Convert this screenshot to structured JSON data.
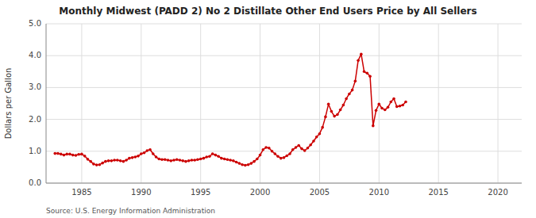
{
  "chart_data": {
    "type": "line",
    "title": "Monthly Midwest (PADD 2) No 2 Distillate Other End Users Price by All Sellers",
    "ylabel": "Dollars per Gallon",
    "annotations": [
      "Source: U.S. Energy Information Administration"
    ],
    "color": "#cc0000",
    "marker": "circle",
    "grid": true,
    "xlim": [
      1982,
      2022
    ],
    "ylim": [
      0.0,
      5.0
    ],
    "xticks": [
      1985,
      1990,
      1995,
      2000,
      2005,
      2010,
      2015,
      2020
    ],
    "yticks": [
      {
        "value": 0.0,
        "label": "0.0"
      },
      {
        "value": 1.0,
        "label": "1.0"
      },
      {
        "value": 2.0,
        "label": "2.0"
      },
      {
        "value": 3.0,
        "label": "3.0"
      },
      {
        "value": 4.0,
        "label": "4.0"
      },
      {
        "value": 5.0,
        "label": "5.0"
      }
    ],
    "x": [
      1982.75,
      1983.0,
      1983.25,
      1983.5,
      1983.75,
      1984.0,
      1984.25,
      1984.5,
      1984.75,
      1985.0,
      1985.25,
      1985.5,
      1985.75,
      1986.0,
      1986.25,
      1986.5,
      1986.75,
      1987.0,
      1987.25,
      1987.5,
      1987.75,
      1988.0,
      1988.25,
      1988.5,
      1988.75,
      1989.0,
      1989.25,
      1989.5,
      1989.75,
      1990.0,
      1990.25,
      1990.5,
      1990.75,
      1991.0,
      1991.25,
      1991.5,
      1991.75,
      1992.0,
      1992.25,
      1992.5,
      1992.75,
      1993.0,
      1993.25,
      1993.5,
      1993.75,
      1994.0,
      1994.25,
      1994.5,
      1994.75,
      1995.0,
      1995.25,
      1995.5,
      1995.75,
      1996.0,
      1996.25,
      1996.5,
      1996.75,
      1997.0,
      1997.25,
      1997.5,
      1997.75,
      1998.0,
      1998.25,
      1998.5,
      1998.75,
      1999.0,
      1999.25,
      1999.5,
      1999.75,
      2000.0,
      2000.25,
      2000.5,
      2000.75,
      2001.0,
      2001.25,
      2001.5,
      2001.75,
      2002.0,
      2002.25,
      2002.5,
      2002.75,
      2003.0,
      2003.25,
      2003.5,
      2003.75,
      2004.0,
      2004.25,
      2004.5,
      2004.75,
      2005.0,
      2005.25,
      2005.5,
      2005.75,
      2006.0,
      2006.25,
      2006.5,
      2006.75,
      2007.0,
      2007.25,
      2007.5,
      2007.75,
      2008.0,
      2008.25,
      2008.5,
      2008.75,
      2009.0,
      2009.25,
      2009.5,
      2009.75,
      2010.0,
      2010.25,
      2010.5,
      2010.75,
      2011.0,
      2011.25,
      2011.5,
      2011.75,
      2012.0,
      2012.25
    ],
    "values": [
      0.93,
      0.93,
      0.91,
      0.88,
      0.91,
      0.91,
      0.88,
      0.87,
      0.9,
      0.91,
      0.85,
      0.75,
      0.68,
      0.6,
      0.57,
      0.58,
      0.63,
      0.68,
      0.7,
      0.7,
      0.72,
      0.72,
      0.7,
      0.68,
      0.72,
      0.78,
      0.8,
      0.82,
      0.85,
      0.92,
      0.95,
      1.02,
      1.05,
      0.92,
      0.82,
      0.76,
      0.74,
      0.74,
      0.72,
      0.7,
      0.72,
      0.74,
      0.72,
      0.7,
      0.68,
      0.7,
      0.72,
      0.72,
      0.74,
      0.76,
      0.78,
      0.82,
      0.84,
      0.92,
      0.88,
      0.84,
      0.78,
      0.76,
      0.74,
      0.72,
      0.7,
      0.66,
      0.62,
      0.58,
      0.56,
      0.58,
      0.62,
      0.68,
      0.76,
      0.88,
      1.05,
      1.12,
      1.1,
      1.0,
      0.92,
      0.84,
      0.78,
      0.8,
      0.86,
      0.92,
      1.05,
      1.12,
      1.18,
      1.08,
      1.02,
      1.1,
      1.2,
      1.32,
      1.45,
      1.55,
      1.75,
      2.08,
      2.48,
      2.25,
      2.1,
      2.15,
      2.3,
      2.45,
      2.65,
      2.8,
      2.92,
      3.2,
      3.85,
      4.05,
      3.5,
      3.45,
      3.35,
      1.8,
      2.28,
      2.48,
      2.35,
      2.3,
      2.38,
      2.55,
      2.65,
      2.4,
      2.42,
      2.45,
      2.55
    ]
  }
}
